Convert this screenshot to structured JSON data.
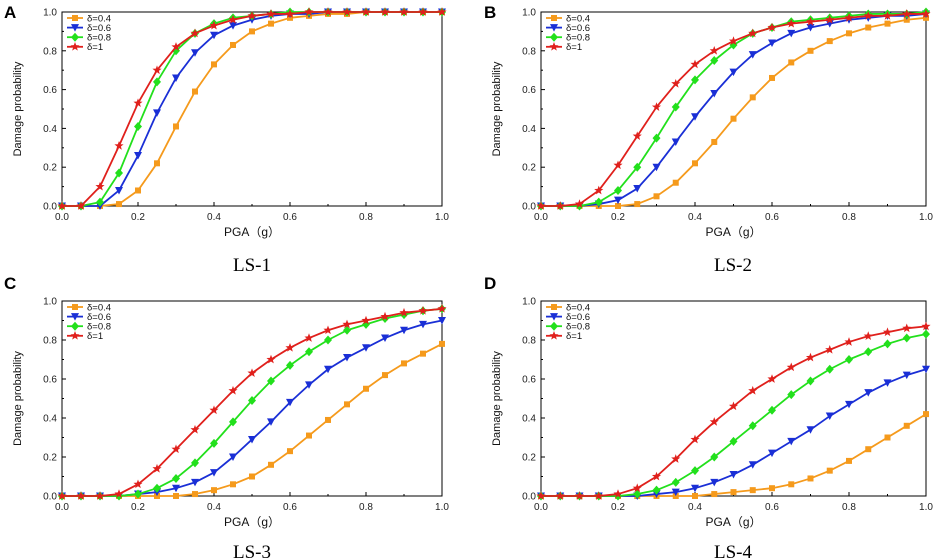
{
  "chart_data": [
    {
      "type": "line",
      "panel": "A",
      "caption": "LS-1",
      "xlabel": "PGA（g）",
      "ylabel": "Damage probability",
      "xlim": [
        0,
        1.0
      ],
      "ylim": [
        0,
        1.0
      ],
      "xticks": [
        "0.0",
        "0.2",
        "0.4",
        "0.6",
        "0.8",
        "1.0"
      ],
      "yticks": [
        "0.0",
        "0.2",
        "0.4",
        "0.6",
        "0.8",
        "1.0"
      ],
      "x": [
        0,
        0.05,
        0.1,
        0.15,
        0.2,
        0.25,
        0.3,
        0.35,
        0.4,
        0.45,
        0.5,
        0.55,
        0.6,
        0.65,
        0.7,
        0.75,
        0.8,
        0.85,
        0.9,
        0.95,
        1.0
      ],
      "series": [
        {
          "name": "δ=0.4",
          "color": "#f59a1c",
          "marker": "square",
          "values": [
            0,
            0,
            0,
            0.01,
            0.08,
            0.22,
            0.41,
            0.59,
            0.73,
            0.83,
            0.9,
            0.94,
            0.97,
            0.98,
            0.99,
            0.99,
            1.0,
            1.0,
            1.0,
            1.0,
            1.0
          ]
        },
        {
          "name": "δ=0.6",
          "color": "#1a2fd6",
          "marker": "triangle-down",
          "values": [
            0,
            0,
            0,
            0.08,
            0.26,
            0.48,
            0.66,
            0.79,
            0.88,
            0.93,
            0.96,
            0.98,
            0.99,
            0.99,
            1.0,
            1.0,
            1.0,
            1.0,
            1.0,
            1.0,
            1.0
          ]
        },
        {
          "name": "δ=0.8",
          "color": "#22e01c",
          "marker": "diamond",
          "values": [
            0,
            0,
            0.02,
            0.17,
            0.41,
            0.64,
            0.8,
            0.89,
            0.94,
            0.97,
            0.98,
            0.99,
            1.0,
            1.0,
            1.0,
            1.0,
            1.0,
            1.0,
            1.0,
            1.0,
            1.0
          ]
        },
        {
          "name": "δ=1",
          "color": "#e0201c",
          "marker": "star",
          "values": [
            0,
            0,
            0.1,
            0.31,
            0.53,
            0.7,
            0.82,
            0.89,
            0.93,
            0.96,
            0.98,
            0.99,
            0.99,
            1.0,
            1.0,
            1.0,
            1.0,
            1.0,
            1.0,
            1.0,
            1.0
          ]
        }
      ]
    },
    {
      "type": "line",
      "panel": "B",
      "caption": "LS-2",
      "xlabel": "PGA（g）",
      "ylabel": "Damage probability",
      "xlim": [
        0,
        1.0
      ],
      "ylim": [
        0,
        1.0
      ],
      "xticks": [
        "0.0",
        "0.2",
        "0.4",
        "0.6",
        "0.8",
        "1.0"
      ],
      "yticks": [
        "0.0",
        "0.2",
        "0.4",
        "0.6",
        "0.8",
        "1.0"
      ],
      "x": [
        0,
        0.05,
        0.1,
        0.15,
        0.2,
        0.25,
        0.3,
        0.35,
        0.4,
        0.45,
        0.5,
        0.55,
        0.6,
        0.65,
        0.7,
        0.75,
        0.8,
        0.85,
        0.9,
        0.95,
        1.0
      ],
      "series": [
        {
          "name": "δ=0.4",
          "color": "#f59a1c",
          "marker": "square",
          "values": [
            0,
            0,
            0,
            0,
            0,
            0.01,
            0.05,
            0.12,
            0.22,
            0.33,
            0.45,
            0.56,
            0.66,
            0.74,
            0.8,
            0.85,
            0.89,
            0.92,
            0.94,
            0.96,
            0.97
          ]
        },
        {
          "name": "δ=0.6",
          "color": "#1a2fd6",
          "marker": "triangle-down",
          "values": [
            0,
            0,
            0,
            0.01,
            0.03,
            0.09,
            0.2,
            0.33,
            0.46,
            0.58,
            0.69,
            0.78,
            0.84,
            0.89,
            0.92,
            0.94,
            0.96,
            0.97,
            0.98,
            0.98,
            0.99
          ]
        },
        {
          "name": "δ=0.8",
          "color": "#22e01c",
          "marker": "diamond",
          "values": [
            0,
            0,
            0,
            0.02,
            0.08,
            0.2,
            0.35,
            0.51,
            0.65,
            0.75,
            0.83,
            0.89,
            0.92,
            0.95,
            0.96,
            0.97,
            0.98,
            0.99,
            0.99,
            0.99,
            1.0
          ]
        },
        {
          "name": "δ=1",
          "color": "#e0201c",
          "marker": "star",
          "values": [
            0,
            0,
            0.01,
            0.08,
            0.21,
            0.36,
            0.51,
            0.63,
            0.73,
            0.8,
            0.85,
            0.89,
            0.92,
            0.94,
            0.95,
            0.96,
            0.97,
            0.98,
            0.98,
            0.99,
            0.99
          ]
        }
      ]
    },
    {
      "type": "line",
      "panel": "C",
      "caption": "LS-3",
      "xlabel": "PGA（g）",
      "ylabel": "Damage probability",
      "xlim": [
        0,
        1.0
      ],
      "ylim": [
        0,
        1.0
      ],
      "xticks": [
        "0.0",
        "0.2",
        "0.4",
        "0.6",
        "0.8",
        "1.0"
      ],
      "yticks": [
        "0.0",
        "0.2",
        "0.4",
        "0.6",
        "0.8",
        "1.0"
      ],
      "x": [
        0,
        0.05,
        0.1,
        0.15,
        0.2,
        0.25,
        0.3,
        0.35,
        0.4,
        0.45,
        0.5,
        0.55,
        0.6,
        0.65,
        0.7,
        0.75,
        0.8,
        0.85,
        0.9,
        0.95,
        1.0
      ],
      "series": [
        {
          "name": "δ=0.4",
          "color": "#f59a1c",
          "marker": "square",
          "values": [
            0,
            0,
            0,
            0,
            0,
            0,
            0,
            0.01,
            0.03,
            0.06,
            0.1,
            0.16,
            0.23,
            0.31,
            0.39,
            0.47,
            0.55,
            0.62,
            0.68,
            0.73,
            0.78
          ]
        },
        {
          "name": "δ=0.6",
          "color": "#1a2fd6",
          "marker": "triangle-down",
          "values": [
            0,
            0,
            0,
            0,
            0.01,
            0.02,
            0.04,
            0.07,
            0.12,
            0.2,
            0.29,
            0.38,
            0.48,
            0.57,
            0.65,
            0.71,
            0.76,
            0.81,
            0.85,
            0.88,
            0.9
          ]
        },
        {
          "name": "δ=0.8",
          "color": "#22e01c",
          "marker": "diamond",
          "values": [
            0,
            0,
            0,
            0,
            0.01,
            0.04,
            0.09,
            0.17,
            0.27,
            0.38,
            0.49,
            0.59,
            0.67,
            0.74,
            0.8,
            0.85,
            0.88,
            0.91,
            0.93,
            0.95,
            0.96
          ]
        },
        {
          "name": "δ=1",
          "color": "#e0201c",
          "marker": "star",
          "values": [
            0,
            0,
            0,
            0.01,
            0.06,
            0.14,
            0.24,
            0.34,
            0.44,
            0.54,
            0.63,
            0.7,
            0.76,
            0.81,
            0.85,
            0.88,
            0.9,
            0.92,
            0.94,
            0.95,
            0.96
          ]
        }
      ]
    },
    {
      "type": "line",
      "panel": "D",
      "caption": "LS-4",
      "xlabel": "PGA（g）",
      "ylabel": "Damage probability",
      "xlim": [
        0,
        1.0
      ],
      "ylim": [
        0,
        1.0
      ],
      "xticks": [
        "0.0",
        "0.2",
        "0.4",
        "0.6",
        "0.8",
        "1.0"
      ],
      "yticks": [
        "0.0",
        "0.2",
        "0.4",
        "0.6",
        "0.8",
        "1.0"
      ],
      "x": [
        0,
        0.05,
        0.1,
        0.15,
        0.2,
        0.25,
        0.3,
        0.35,
        0.4,
        0.45,
        0.5,
        0.55,
        0.6,
        0.65,
        0.7,
        0.75,
        0.8,
        0.85,
        0.9,
        0.95,
        1.0
      ],
      "series": [
        {
          "name": "δ=0.4",
          "color": "#f59a1c",
          "marker": "square",
          "values": [
            0,
            0,
            0,
            0,
            0,
            0,
            0,
            0,
            0,
            0.01,
            0.02,
            0.03,
            0.04,
            0.06,
            0.09,
            0.13,
            0.18,
            0.24,
            0.3,
            0.36,
            0.42
          ]
        },
        {
          "name": "δ=0.6",
          "color": "#1a2fd6",
          "marker": "triangle-down",
          "values": [
            0,
            0,
            0,
            0,
            0,
            0,
            0.01,
            0.02,
            0.04,
            0.07,
            0.11,
            0.16,
            0.22,
            0.28,
            0.34,
            0.41,
            0.47,
            0.53,
            0.58,
            0.62,
            0.65
          ]
        },
        {
          "name": "δ=0.8",
          "color": "#22e01c",
          "marker": "diamond",
          "values": [
            0,
            0,
            0,
            0,
            0,
            0.01,
            0.03,
            0.07,
            0.13,
            0.2,
            0.28,
            0.36,
            0.44,
            0.52,
            0.59,
            0.65,
            0.7,
            0.74,
            0.78,
            0.81,
            0.83
          ]
        },
        {
          "name": "δ=1",
          "color": "#e0201c",
          "marker": "star",
          "values": [
            0,
            0,
            0,
            0,
            0.01,
            0.04,
            0.1,
            0.19,
            0.29,
            0.38,
            0.46,
            0.54,
            0.6,
            0.66,
            0.71,
            0.75,
            0.79,
            0.82,
            0.84,
            0.86,
            0.87
          ]
        }
      ]
    }
  ]
}
